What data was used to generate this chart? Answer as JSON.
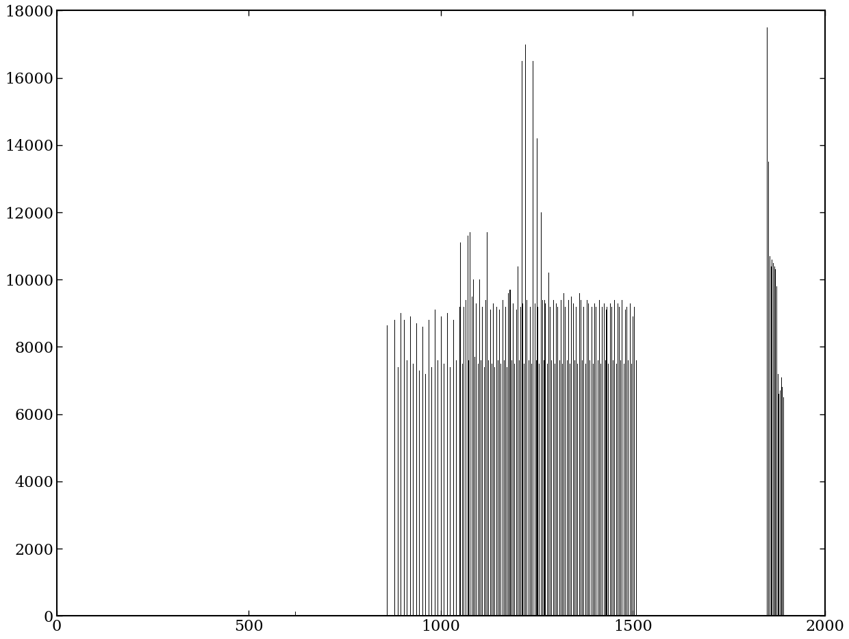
{
  "xlim": [
    0,
    2000
  ],
  "ylim": [
    0,
    18000
  ],
  "xticks": [
    0,
    500,
    1000,
    1500,
    2000
  ],
  "yticks": [
    0,
    2000,
    4000,
    6000,
    8000,
    10000,
    12000,
    14000,
    16000,
    18000
  ],
  "line_color": "black",
  "line_width": 0.7,
  "background_color": "white",
  "figsize": [
    12.4,
    9.33
  ],
  "dpi": 100,
  "stems": [
    [
      620,
      130
    ],
    [
      860,
      8650
    ],
    [
      880,
      8800
    ],
    [
      888,
      7400
    ],
    [
      896,
      9000
    ],
    [
      904,
      8800
    ],
    [
      912,
      7600
    ],
    [
      920,
      8900
    ],
    [
      928,
      7500
    ],
    [
      936,
      8700
    ],
    [
      944,
      7300
    ],
    [
      952,
      8600
    ],
    [
      960,
      7200
    ],
    [
      968,
      8800
    ],
    [
      976,
      7400
    ],
    [
      984,
      9100
    ],
    [
      992,
      7600
    ],
    [
      1000,
      8900
    ],
    [
      1008,
      7500
    ],
    [
      1016,
      9000
    ],
    [
      1024,
      7400
    ],
    [
      1032,
      8800
    ],
    [
      1040,
      7600
    ],
    [
      1048,
      9200
    ],
    [
      1050,
      11100
    ],
    [
      1056,
      7500
    ],
    [
      1060,
      9200
    ],
    [
      1064,
      9400
    ],
    [
      1070,
      11300
    ],
    [
      1072,
      7600
    ],
    [
      1076,
      11400
    ],
    [
      1080,
      9500
    ],
    [
      1084,
      10000
    ],
    [
      1088,
      7700
    ],
    [
      1092,
      9300
    ],
    [
      1096,
      7500
    ],
    [
      1100,
      10000
    ],
    [
      1104,
      7600
    ],
    [
      1108,
      9200
    ],
    [
      1112,
      7400
    ],
    [
      1116,
      9400
    ],
    [
      1120,
      11400
    ],
    [
      1124,
      7600
    ],
    [
      1128,
      9100
    ],
    [
      1132,
      7500
    ],
    [
      1136,
      9300
    ],
    [
      1140,
      7400
    ],
    [
      1144,
      9200
    ],
    [
      1148,
      7600
    ],
    [
      1152,
      9100
    ],
    [
      1156,
      7500
    ],
    [
      1160,
      9400
    ],
    [
      1164,
      7600
    ],
    [
      1168,
      9200
    ],
    [
      1172,
      7400
    ],
    [
      1176,
      9600
    ],
    [
      1178,
      9700
    ],
    [
      1180,
      9700
    ],
    [
      1184,
      7600
    ],
    [
      1188,
      9300
    ],
    [
      1192,
      7500
    ],
    [
      1196,
      9100
    ],
    [
      1200,
      10400
    ],
    [
      1204,
      7600
    ],
    [
      1208,
      9200
    ],
    [
      1210,
      16500
    ],
    [
      1212,
      9300
    ],
    [
      1216,
      7500
    ],
    [
      1220,
      17000
    ],
    [
      1224,
      9400
    ],
    [
      1228,
      7600
    ],
    [
      1232,
      9200
    ],
    [
      1236,
      7500
    ],
    [
      1240,
      16500
    ],
    [
      1244,
      9300
    ],
    [
      1248,
      7600
    ],
    [
      1250,
      14200
    ],
    [
      1252,
      9200
    ],
    [
      1256,
      7500
    ],
    [
      1260,
      12000
    ],
    [
      1264,
      9400
    ],
    [
      1268,
      7600
    ],
    [
      1270,
      9400
    ],
    [
      1272,
      9300
    ],
    [
      1276,
      7500
    ],
    [
      1280,
      10200
    ],
    [
      1284,
      9200
    ],
    [
      1288,
      7600
    ],
    [
      1292,
      9400
    ],
    [
      1296,
      7500
    ],
    [
      1300,
      9300
    ],
    [
      1304,
      9200
    ],
    [
      1308,
      7600
    ],
    [
      1312,
      9400
    ],
    [
      1316,
      7500
    ],
    [
      1320,
      9600
    ],
    [
      1324,
      9200
    ],
    [
      1328,
      7600
    ],
    [
      1332,
      9400
    ],
    [
      1336,
      7500
    ],
    [
      1340,
      9500
    ],
    [
      1344,
      9300
    ],
    [
      1348,
      7600
    ],
    [
      1352,
      9200
    ],
    [
      1356,
      7500
    ],
    [
      1360,
      9600
    ],
    [
      1364,
      9400
    ],
    [
      1368,
      7600
    ],
    [
      1372,
      9200
    ],
    [
      1376,
      7500
    ],
    [
      1380,
      9400
    ],
    [
      1384,
      9300
    ],
    [
      1388,
      7600
    ],
    [
      1392,
      9200
    ],
    [
      1396,
      7500
    ],
    [
      1400,
      9300
    ],
    [
      1404,
      9200
    ],
    [
      1408,
      7600
    ],
    [
      1412,
      9400
    ],
    [
      1416,
      7500
    ],
    [
      1420,
      9200
    ],
    [
      1424,
      9300
    ],
    [
      1428,
      7600
    ],
    [
      1430,
      9100
    ],
    [
      1432,
      9200
    ],
    [
      1436,
      7500
    ],
    [
      1440,
      9300
    ],
    [
      1444,
      9200
    ],
    [
      1448,
      7600
    ],
    [
      1452,
      9400
    ],
    [
      1456,
      7500
    ],
    [
      1460,
      9300
    ],
    [
      1464,
      9200
    ],
    [
      1468,
      7600
    ],
    [
      1472,
      9400
    ],
    [
      1476,
      7500
    ],
    [
      1480,
      9100
    ],
    [
      1484,
      9200
    ],
    [
      1488,
      7600
    ],
    [
      1492,
      9300
    ],
    [
      1496,
      7500
    ],
    [
      1500,
      8900
    ],
    [
      1504,
      9200
    ],
    [
      1508,
      7600
    ],
    [
      1850,
      17500
    ],
    [
      1853,
      13500
    ],
    [
      1856,
      10700
    ],
    [
      1859,
      10400
    ],
    [
      1862,
      10600
    ],
    [
      1865,
      10500
    ],
    [
      1868,
      10400
    ],
    [
      1871,
      10300
    ],
    [
      1874,
      9800
    ],
    [
      1877,
      7200
    ],
    [
      1880,
      6600
    ],
    [
      1883,
      6700
    ],
    [
      1886,
      7100
    ],
    [
      1889,
      6800
    ],
    [
      1892,
      6500
    ]
  ]
}
